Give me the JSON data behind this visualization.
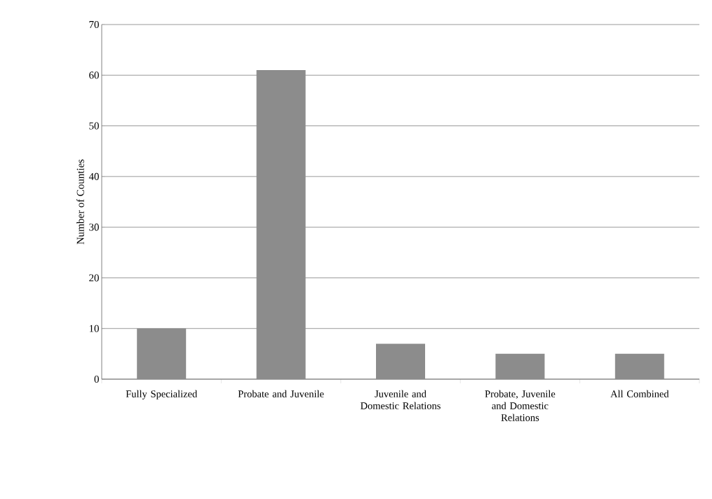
{
  "chart_data": {
    "type": "bar",
    "ylabel": "Number of Counties",
    "categories": [
      "Fully Specialized",
      "Probate and Juvenile",
      "Juvenile and Domestic Relations",
      "Probate, Juvenile and Domestic Relations",
      "All Combined"
    ],
    "values": [
      10,
      61,
      7,
      5,
      5
    ],
    "color": "#8c8c8c",
    "ylim": [
      0,
      70
    ],
    "yticks": [
      0,
      10,
      20,
      30,
      40,
      50,
      60,
      70
    ],
    "grid": "y"
  }
}
